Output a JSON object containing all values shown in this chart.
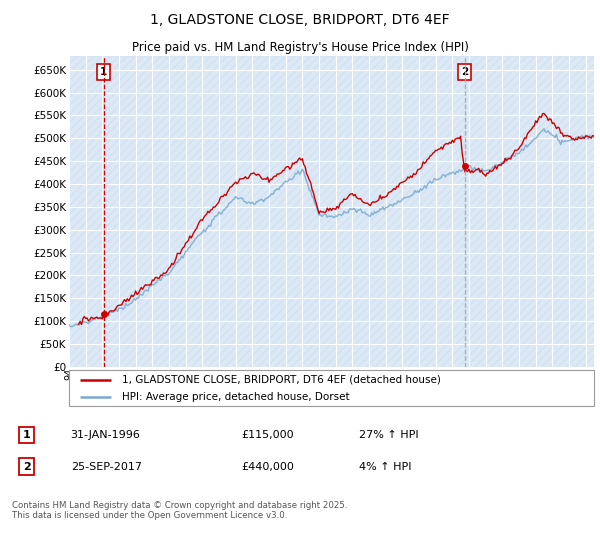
{
  "title": "1, GLADSTONE CLOSE, BRIDPORT, DT6 4EF",
  "subtitle": "Price paid vs. HM Land Registry's House Price Index (HPI)",
  "legend_line1": "1, GLADSTONE CLOSE, BRIDPORT, DT6 4EF (detached house)",
  "legend_line2": "HPI: Average price, detached house, Dorset",
  "footnote": "Contains HM Land Registry data © Crown copyright and database right 2025.\nThis data is licensed under the Open Government Licence v3.0.",
  "transaction1_label": "1",
  "transaction1_date": "31-JAN-1996",
  "transaction1_price": "£115,000",
  "transaction1_hpi": "27% ↑ HPI",
  "transaction2_label": "2",
  "transaction2_date": "25-SEP-2017",
  "transaction2_price": "£440,000",
  "transaction2_hpi": "4% ↑ HPI",
  "line_color_property": "#cc0000",
  "line_color_hpi": "#7aaad0",
  "vline1_color": "#cc0000",
  "vline2_color": "#aaaaaa",
  "background_plot": "#dce8f5",
  "background_figure": "#ffffff",
  "ylim": [
    0,
    680000
  ],
  "yticks": [
    0,
    50000,
    100000,
    150000,
    200000,
    250000,
    300000,
    350000,
    400000,
    450000,
    500000,
    550000,
    600000,
    650000
  ],
  "transaction1_x": 1996.08,
  "transaction2_x": 2017.73,
  "xstart": 1994.0,
  "xend": 2025.5
}
